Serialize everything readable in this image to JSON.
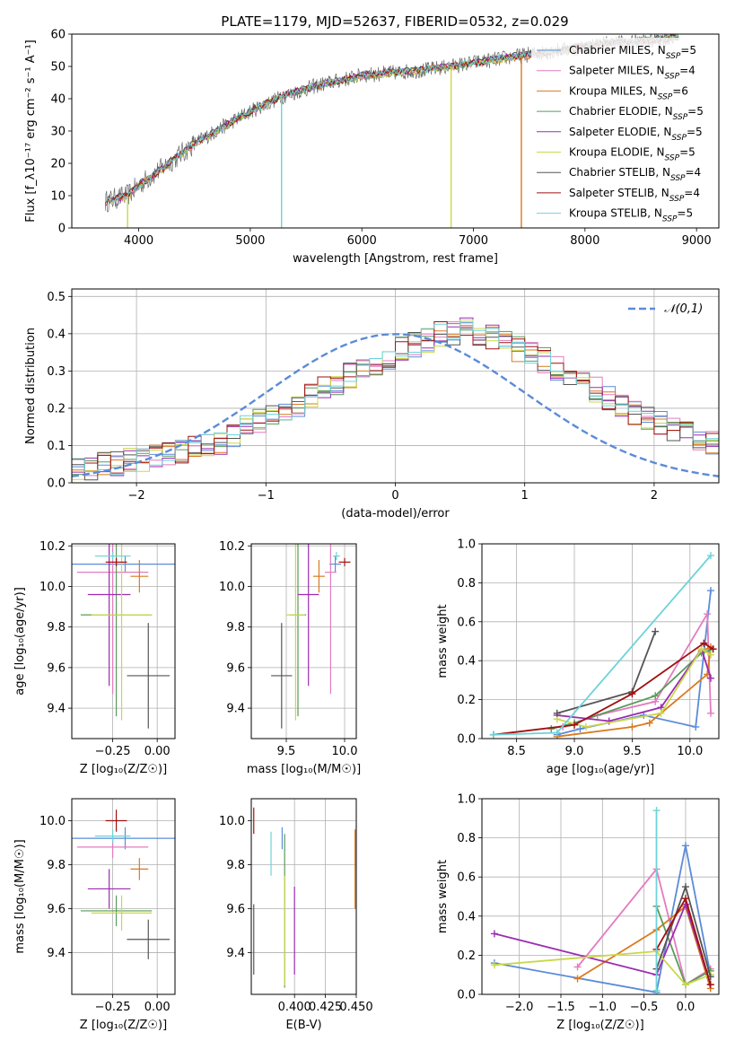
{
  "figure_title": "PLATE=1179, MJD=52637, FIBERID=0532, z=0.029",
  "colors": {
    "Chabrier MILES": "#5B8BD8",
    "Salpeter MILES": "#E37CBF",
    "Kroupa MILES": "#D97A1E",
    "Chabrier ELODIE": "#5A9A5A",
    "Salpeter ELODIE": "#9B2DB0",
    "Kroupa ELODIE": "#C8D84A",
    "Chabrier STELIB": "#555555",
    "Salpeter STELIB": "#A01010",
    "Kroupa STELIB": "#6ED3D8"
  },
  "chart_data": [
    {
      "id": "spectrum",
      "type": "line",
      "xlabel": "wavelength [Angstrom, rest frame]",
      "ylabel": "Flux [f_λ10⁻¹⁷ erg cm⁻² s⁻¹ A⁻¹]",
      "xlim": [
        3400,
        9200
      ],
      "ylim": [
        0,
        60
      ],
      "xticks": [
        4000,
        5000,
        6000,
        7000,
        8000,
        9000
      ],
      "yticks": [
        0,
        10,
        20,
        30,
        40,
        50,
        60
      ],
      "legend_position": "upper-right",
      "legend": [
        "Chabrier MILES, N_SSP=5",
        "Salpeter MILES, N_SSP=4",
        "Kroupa MILES, N_SSP=6",
        "Chabrier ELODIE, N_SSP=5",
        "Salpeter ELODIE, N_SSP=5",
        "Kroupa ELODIE, N_SSP=5",
        "Chabrier STELIB, N_SSP=4",
        "Salpeter STELIB, N_SSP=4",
        "Kroupa STELIB, N_SSP=5"
      ],
      "continuum": {
        "x": [
          3700,
          3900,
          4000,
          4200,
          4500,
          4800,
          5000,
          5300,
          5600,
          6000,
          6300,
          6600,
          7000,
          7400,
          7800,
          8200,
          8600,
          8800
        ],
        "y": [
          8,
          10,
          13,
          18,
          26,
          32,
          36,
          41,
          44,
          47,
          48,
          49,
          51,
          53,
          55,
          57,
          58,
          59
        ]
      },
      "series": [
        {
          "name": "Chabrier MILES, N_SSP=5",
          "values": [
            8.2,
            10.1,
            13.2,
            18.3,
            26.1,
            32.2,
            36.1,
            40.9,
            44.1,
            47.2,
            48.1,
            49.0,
            51.1,
            53.2,
            55.1,
            57.1,
            58.0,
            59.0
          ]
        },
        {
          "name": "Salpeter MILES, N_SSP=4",
          "values": [
            8.0,
            9.9,
            12.9,
            18.1,
            25.8,
            31.9,
            35.9,
            41.0,
            43.9,
            46.9,
            47.9,
            49.1,
            50.9,
            52.8,
            54.9,
            56.8,
            57.9,
            58.8
          ]
        },
        {
          "name": "Kroupa MILES, N_SSP=6",
          "values": [
            7.9,
            10.0,
            13.1,
            18.0,
            26.0,
            32.1,
            36.2,
            41.1,
            44.0,
            47.0,
            48.2,
            49.2,
            51.2,
            52.9,
            55.0,
            57.0,
            58.1,
            59.2
          ]
        },
        {
          "name": "Chabrier ELODIE, N_SSP=5",
          "values": [
            8.1,
            10.2,
            13.0,
            18.2,
            26.2,
            31.8,
            35.8,
            40.8,
            43.8,
            46.8,
            47.8,
            48.8,
            50.8,
            53.0,
            55.2,
            57.2,
            58.2,
            59.1
          ]
        },
        {
          "name": "Salpeter ELODIE, N_SSP=5",
          "values": [
            8.3,
            10.0,
            13.3,
            18.4,
            26.3,
            32.3,
            36.3,
            41.2,
            44.2,
            47.3,
            48.3,
            49.3,
            51.3,
            53.3,
            55.3,
            57.3,
            58.3,
            59.3
          ]
        },
        {
          "name": "Kroupa ELODIE, N_SSP=5",
          "values": [
            7.8,
            9.8,
            12.8,
            17.9,
            25.9,
            31.9,
            36.0,
            40.9,
            43.9,
            46.9,
            48.0,
            48.9,
            51.0,
            53.1,
            55.1,
            57.1,
            58.1,
            59.1
          ]
        },
        {
          "name": "Chabrier STELIB, N_SSP=4",
          "values": [
            8.4,
            10.3,
            13.4,
            18.5,
            26.4,
            32.4,
            36.4,
            41.3,
            44.3,
            47.4,
            48.4,
            49.4,
            51.4,
            53.4,
            55.4,
            57.4,
            58.4,
            59.4
          ]
        },
        {
          "name": "Salpeter STELIB, N_SSP=4",
          "values": [
            8.0,
            10.1,
            13.0,
            18.1,
            26.0,
            32.0,
            36.0,
            41.0,
            44.0,
            47.1,
            48.1,
            49.1,
            51.0,
            53.0,
            55.0,
            57.0,
            58.0,
            59.0
          ]
        },
        {
          "name": "Kroupa STELIB, N_SSP=5",
          "values": [
            8.2,
            10.2,
            13.2,
            18.2,
            26.2,
            32.2,
            36.2,
            41.2,
            44.2,
            47.2,
            48.2,
            49.2,
            51.2,
            53.2,
            55.2,
            57.2,
            58.2,
            59.2
          ]
        }
      ],
      "dips": [
        {
          "series": "Kroupa STELIB, N_SSP=5",
          "x": 5280
        },
        {
          "series": "Kroupa ELODIE, N_SSP=5",
          "x": 3900
        },
        {
          "series": "Kroupa ELODIE, N_SSP=5",
          "x": 6800
        },
        {
          "series": "Kroupa MILES, N_SSP=6",
          "x": 7430
        }
      ]
    },
    {
      "id": "residuals",
      "type": "line",
      "xlabel": "(data-model)/error",
      "ylabel": "Normed distribution",
      "xlim": [
        -2.5,
        2.5
      ],
      "ylim": [
        0,
        0.52
      ],
      "xticks": [
        -2,
        -1,
        0,
        1,
        2
      ],
      "yticks": [
        0.0,
        0.1,
        0.2,
        0.3,
        0.4,
        0.5
      ],
      "grid": true,
      "legend": [
        "𝒩(0,1)"
      ],
      "legend_position": "upper-right",
      "gaussian": {
        "mean": 0,
        "sigma": 1
      },
      "bin_width": 0.1,
      "bin_start": -2.5,
      "base_hist": [
        0.04,
        0.04,
        0.05,
        0.05,
        0.06,
        0.06,
        0.07,
        0.08,
        0.08,
        0.09,
        0.1,
        0.11,
        0.13,
        0.15,
        0.17,
        0.19,
        0.2,
        0.21,
        0.23,
        0.25,
        0.27,
        0.29,
        0.31,
        0.32,
        0.34,
        0.36,
        0.37,
        0.38,
        0.4,
        0.4,
        0.41,
        0.4,
        0.39,
        0.38,
        0.36,
        0.35,
        0.33,
        0.31,
        0.29,
        0.27,
        0.25,
        0.23,
        0.21,
        0.19,
        0.17,
        0.16,
        0.14,
        0.13,
        0.12,
        0.11,
        0.1
      ]
    },
    {
      "id": "age-vs-Z",
      "type": "scatter",
      "xlabel": "Z [log₁₀(Z/Z☉)]",
      "ylabel": "age  [log₁₀(age/yr)]",
      "xlim": [
        -0.48,
        0.1
      ],
      "ylim": [
        9.25,
        10.21
      ],
      "xticks": [
        -0.25,
        0.0
      ],
      "yticks": [
        9.4,
        9.6,
        9.8,
        10.0,
        10.2
      ],
      "grid": true,
      "points": [
        {
          "x": -0.18,
          "y": 10.11,
          "xerr": 0.3,
          "yerr": 0.04,
          "color": "#5B8BD8"
        },
        {
          "x": -0.25,
          "y": 10.07,
          "xerr": 0.2,
          "yerr": 0.6,
          "color": "#E37CBF"
        },
        {
          "x": -0.1,
          "y": 10.05,
          "xerr": 0.05,
          "yerr": 0.08,
          "color": "#D97A1E"
        },
        {
          "x": -0.23,
          "y": 9.86,
          "xerr": 0.2,
          "yerr": 0.5,
          "color": "#5A9A5A"
        },
        {
          "x": -0.27,
          "y": 9.96,
          "xerr": 0.12,
          "yerr": 0.45,
          "color": "#9B2DB0"
        },
        {
          "x": -0.2,
          "y": 9.86,
          "xerr": 0.17,
          "yerr": 0.52,
          "color": "#C8D84A"
        },
        {
          "x": -0.05,
          "y": 9.56,
          "xerr": 0.12,
          "yerr": 0.26,
          "color": "#555555"
        },
        {
          "x": -0.23,
          "y": 10.12,
          "xerr": 0.06,
          "yerr": 0.02,
          "color": "#A01010"
        },
        {
          "x": -0.25,
          "y": 10.15,
          "xerr": 0.1,
          "yerr": 0.02,
          "color": "#6ED3D8"
        }
      ]
    },
    {
      "id": "age-vs-mass",
      "type": "scatter",
      "xlabel": "mass [log₁₀(M/M☉)]",
      "ylabel": "",
      "xlim": [
        9.2,
        10.1
      ],
      "ylim": [
        9.25,
        10.21
      ],
      "xticks": [
        9.5,
        10.0
      ],
      "yticks": [
        9.4,
        9.6,
        9.8,
        10.0,
        10.2
      ],
      "grid": true,
      "points": [
        {
          "x": 9.92,
          "y": 10.11,
          "xerr": 0.05,
          "yerr": 0.04,
          "color": "#5B8BD8"
        },
        {
          "x": 9.88,
          "y": 10.07,
          "xerr": 0.05,
          "yerr": 0.6,
          "color": "#E37CBF"
        },
        {
          "x": 9.78,
          "y": 10.05,
          "xerr": 0.05,
          "yerr": 0.08,
          "color": "#D97A1E"
        },
        {
          "x": 9.6,
          "y": 9.86,
          "xerr": 0.07,
          "yerr": 0.5,
          "color": "#5A9A5A"
        },
        {
          "x": 9.69,
          "y": 9.96,
          "xerr": 0.09,
          "yerr": 0.45,
          "color": "#9B2DB0"
        },
        {
          "x": 9.58,
          "y": 9.86,
          "xerr": 0.08,
          "yerr": 0.52,
          "color": "#C8D84A"
        },
        {
          "x": 9.46,
          "y": 9.56,
          "xerr": 0.09,
          "yerr": 0.26,
          "color": "#555555"
        },
        {
          "x": 10.0,
          "y": 10.12,
          "xerr": 0.05,
          "yerr": 0.02,
          "color": "#A01010"
        },
        {
          "x": 9.93,
          "y": 10.15,
          "xerr": 0.03,
          "yerr": 0.02,
          "color": "#6ED3D8"
        }
      ]
    },
    {
      "id": "massweight-vs-age",
      "type": "line",
      "xlabel": "age  [log₁₀(age/yr)]",
      "ylabel": "mass weight",
      "xlim": [
        8.2,
        10.25
      ],
      "ylim": [
        0,
        1.0
      ],
      "xticks": [
        8.5,
        9.0,
        9.5,
        10.0
      ],
      "yticks": [
        0.0,
        0.2,
        0.4,
        0.6,
        0.8,
        1.0
      ],
      "grid": true,
      "series": [
        {
          "color": "#5B8BD8",
          "x": [
            8.85,
            9.05,
            9.6,
            10.05,
            10.18
          ],
          "y": [
            0.02,
            0.05,
            0.12,
            0.06,
            0.76
          ]
        },
        {
          "color": "#E37CBF",
          "x": [
            8.9,
            9.2,
            9.7,
            10.15,
            10.18
          ],
          "y": [
            0.06,
            0.12,
            0.19,
            0.64,
            0.13
          ]
        },
        {
          "color": "#D97A1E",
          "x": [
            8.85,
            9.5,
            9.65,
            10.15,
            10.18,
            10.1
          ],
          "y": [
            0.01,
            0.06,
            0.08,
            0.33,
            0.47,
            0.45
          ]
        },
        {
          "color": "#5A9A5A",
          "x": [
            8.8,
            9.0,
            9.7,
            10.1,
            10.2
          ],
          "y": [
            0.05,
            0.08,
            0.22,
            0.44,
            0.46
          ]
        },
        {
          "color": "#9B2DB0",
          "x": [
            8.85,
            9.3,
            9.75,
            10.1,
            10.18
          ],
          "y": [
            0.12,
            0.09,
            0.16,
            0.46,
            0.31
          ]
        },
        {
          "color": "#C8D84A",
          "x": [
            8.85,
            9.1,
            9.75,
            10.1,
            10.18
          ],
          "y": [
            0.1,
            0.06,
            0.13,
            0.46,
            0.43
          ]
        },
        {
          "color": "#555555",
          "x": [
            8.85,
            9.5,
            9.7
          ],
          "y": [
            0.13,
            0.24,
            0.55
          ]
        },
        {
          "color": "#A01010",
          "x": [
            8.3,
            9.0,
            9.5,
            10.12,
            10.2
          ],
          "y": [
            0.02,
            0.07,
            0.23,
            0.49,
            0.46
          ]
        },
        {
          "color": "#6ED3D8",
          "x": [
            8.3,
            8.85,
            10.18
          ],
          "y": [
            0.02,
            0.03,
            0.94
          ]
        }
      ]
    },
    {
      "id": "mass-vs-Z",
      "type": "scatter",
      "xlabel": "Z [log₁₀(Z/Z☉)]",
      "ylabel": "mass [log₁₀(M/M☉)]",
      "xlim": [
        -0.48,
        0.1
      ],
      "ylim": [
        9.21,
        10.1
      ],
      "xticks": [
        -0.25,
        0.0
      ],
      "yticks": [
        9.4,
        9.6,
        9.8,
        10.0
      ],
      "grid": true,
      "points": [
        {
          "x": -0.18,
          "y": 9.92,
          "xerr": 0.3,
          "yerr": 0.05,
          "color": "#5B8BD8"
        },
        {
          "x": -0.25,
          "y": 9.88,
          "xerr": 0.2,
          "yerr": 0.05,
          "color": "#E37CBF"
        },
        {
          "x": -0.1,
          "y": 9.78,
          "xerr": 0.05,
          "yerr": 0.05,
          "color": "#D97A1E"
        },
        {
          "x": -0.23,
          "y": 9.59,
          "xerr": 0.2,
          "yerr": 0.07,
          "color": "#5A9A5A"
        },
        {
          "x": -0.27,
          "y": 9.69,
          "xerr": 0.12,
          "yerr": 0.09,
          "color": "#9B2DB0"
        },
        {
          "x": -0.2,
          "y": 9.58,
          "xerr": 0.17,
          "yerr": 0.08,
          "color": "#C8D84A"
        },
        {
          "x": -0.05,
          "y": 9.46,
          "xerr": 0.12,
          "yerr": 0.09,
          "color": "#555555"
        },
        {
          "x": -0.23,
          "y": 10.0,
          "xerr": 0.06,
          "yerr": 0.05,
          "color": "#A01010"
        },
        {
          "x": -0.25,
          "y": 9.93,
          "xerr": 0.1,
          "yerr": 0.03,
          "color": "#6ED3D8"
        }
      ]
    },
    {
      "id": "mass-vs-ebv",
      "type": "scatter",
      "xlabel": "E(B-V)",
      "ylabel": "",
      "xlim": [
        0.365,
        0.45
      ],
      "ylim": [
        9.21,
        10.1
      ],
      "xticks": [
        0.4,
        0.425,
        0.45
      ],
      "yticks": [
        9.4,
        9.6,
        9.8,
        10.0
      ],
      "grid": true,
      "points": [
        {
          "x": 0.39,
          "y": 9.92,
          "yerr": 0.05,
          "color": "#5B8BD8"
        },
        {
          "x": 0.45,
          "y": 9.88,
          "yerr": 0.1,
          "color": "#E37CBF"
        },
        {
          "x": 0.449,
          "y": 9.78,
          "yerr": 0.18,
          "color": "#D97A1E"
        },
        {
          "x": 0.392,
          "y": 9.59,
          "yerr": 0.35,
          "color": "#5A9A5A"
        },
        {
          "x": 0.4,
          "y": 9.5,
          "yerr": 0.2,
          "color": "#9B2DB0"
        },
        {
          "x": 0.392,
          "y": 9.5,
          "yerr": 0.25,
          "color": "#C8D84A"
        },
        {
          "x": 0.367,
          "y": 9.46,
          "yerr": 0.16,
          "color": "#555555"
        },
        {
          "x": 0.367,
          "y": 10.0,
          "yerr": 0.06,
          "color": "#A01010"
        },
        {
          "x": 0.381,
          "y": 9.85,
          "yerr": 0.1,
          "color": "#6ED3D8"
        }
      ]
    },
    {
      "id": "massweight-vs-Z",
      "type": "line",
      "xlabel": "Z [log₁₀(Z/Z☉)]",
      "ylabel": "mass weight",
      "xlim": [
        -2.45,
        0.4
      ],
      "ylim": [
        0,
        1.0
      ],
      "xticks": [
        -2.0,
        -1.5,
        -1.0,
        -0.5,
        0.0
      ],
      "yticks": [
        0.0,
        0.2,
        0.4,
        0.6,
        0.8,
        1.0
      ],
      "grid": true,
      "series": [
        {
          "color": "#5B8BD8",
          "x": [
            -2.3,
            -0.35,
            0.0,
            0.3
          ],
          "y": [
            0.16,
            0.01,
            0.76,
            0.1
          ]
        },
        {
          "color": "#E37CBF",
          "x": [
            -1.3,
            -0.35,
            0.0,
            0.3
          ],
          "y": [
            0.14,
            0.64,
            0.05,
            0.13
          ]
        },
        {
          "color": "#D97A1E",
          "x": [
            -1.3,
            -0.35,
            0.0,
            0.3
          ],
          "y": [
            0.08,
            0.33,
            0.45,
            0.03
          ]
        },
        {
          "color": "#5A9A5A",
          "x": [
            -0.35,
            0.0,
            0.3
          ],
          "y": [
            0.45,
            0.05,
            0.12
          ]
        },
        {
          "color": "#9B2DB0",
          "x": [
            -2.3,
            -0.35,
            0.0,
            0.3
          ],
          "y": [
            0.31,
            0.1,
            0.46,
            0.05
          ]
        },
        {
          "color": "#C8D84A",
          "x": [
            -2.3,
            -0.35,
            0.0,
            0.3
          ],
          "y": [
            0.15,
            0.22,
            0.05,
            0.1
          ]
        },
        {
          "color": "#555555",
          "x": [
            -0.35,
            0.0,
            0.3
          ],
          "y": [
            0.13,
            0.55,
            0.09
          ]
        },
        {
          "color": "#A01010",
          "x": [
            -0.35,
            0.0,
            0.3
          ],
          "y": [
            0.23,
            0.49,
            0.05
          ]
        },
        {
          "color": "#6ED3D8",
          "x": [
            -0.35,
            -0.35
          ],
          "y": [
            0.02,
            0.94
          ]
        }
      ]
    }
  ]
}
